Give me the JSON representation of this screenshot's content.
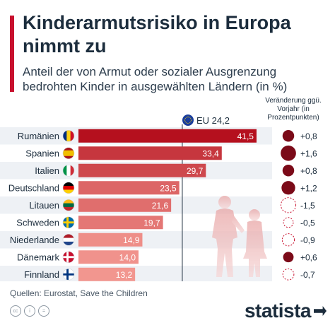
{
  "header": {
    "title": "Kinderarmutsrisiko in Europa nimmt zu",
    "subtitle": "Anteil der von Armut oder sozialer Ausgrenzung bedrohten Kinder in ausgewählten Ländern (in %)",
    "delta_header": "Veränderung ggü. Vorjahr (in Prozentpunkten)",
    "accent_color": "#c8102e"
  },
  "eu": {
    "label": "EU 24,2"
  },
  "chart_data": {
    "type": "bar",
    "orientation": "horizontal",
    "categories": [
      "Rumänien",
      "Spanien",
      "Italien",
      "Deutschland",
      "Litauen",
      "Schweden",
      "Niederlande",
      "Dänemark",
      "Finnland"
    ],
    "values": [
      41.5,
      33.4,
      29.7,
      23.5,
      21.6,
      19.7,
      14.9,
      14.0,
      13.2
    ],
    "value_labels": [
      "41,5",
      "33,4",
      "29,7",
      "23,5",
      "21,6",
      "19,7",
      "14,9",
      "14,0",
      "13,2"
    ],
    "reference_line": {
      "label": "EU",
      "value": 24.2
    },
    "changes": [
      0.8,
      1.6,
      0.8,
      1.2,
      -1.5,
      -0.5,
      -0.9,
      0.6,
      -0.7
    ],
    "change_labels": [
      "+0,8",
      "+1,6",
      "+0,8",
      "+1,2",
      "-1,5",
      "-0,5",
      "-0,9",
      "+0,6",
      "-0,7"
    ],
    "flags": [
      "flag-romania-icon",
      "flag-spain-icon",
      "flag-italy-icon",
      "flag-germany-icon",
      "flag-lithuania-icon",
      "flag-sweden-icon",
      "flag-netherlands-icon",
      "flag-denmark-icon",
      "flag-finland-icon"
    ],
    "colors": {
      "bar_high": "#b5101e",
      "bar_low": "#f2968f",
      "positive_dot": "#7b0a18",
      "negative_dot": "#c8102e",
      "row_band": "#eef1f5"
    },
    "xlim": [
      0,
      42
    ]
  },
  "footer": {
    "source": "Quellen: Eurostat, Save the Children",
    "logo": "statista"
  }
}
